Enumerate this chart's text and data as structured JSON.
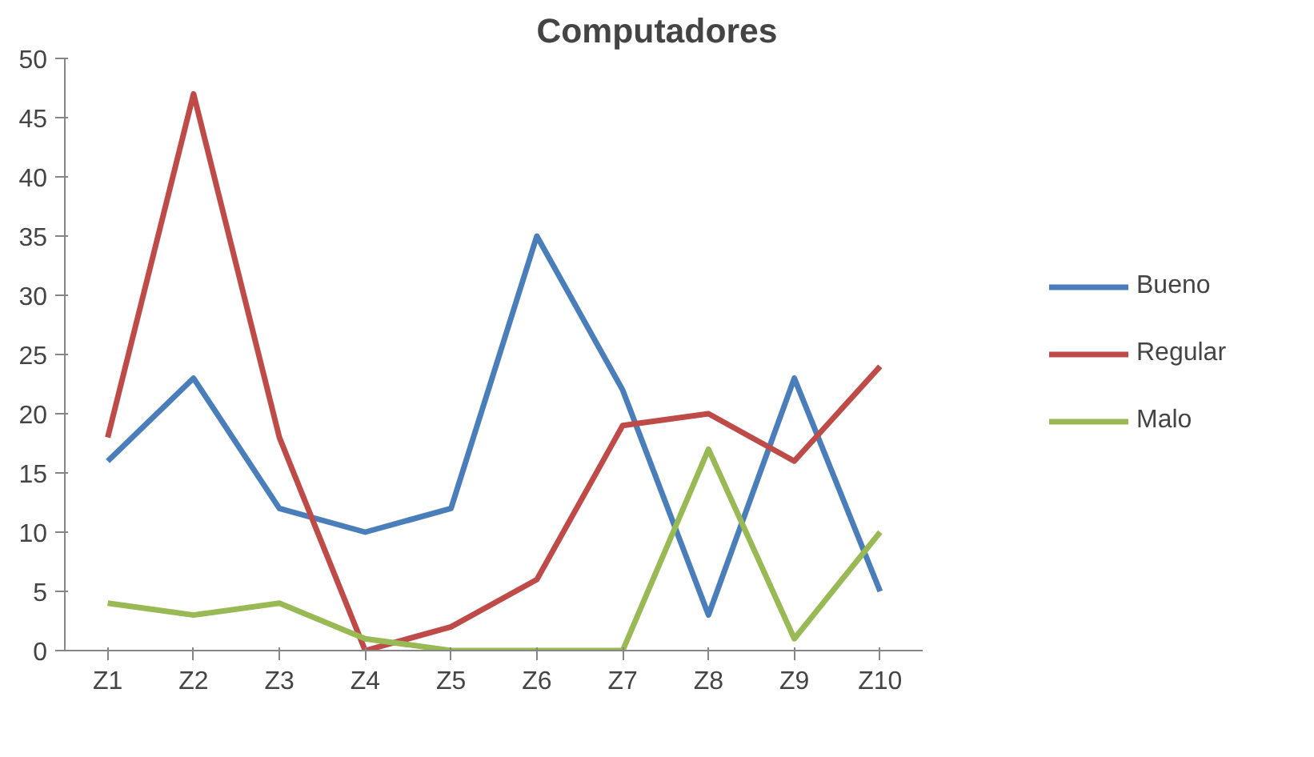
{
  "chart_data": {
    "type": "line",
    "title": "Computadores",
    "categories": [
      "Z1",
      "Z2",
      "Z3",
      "Z4",
      "Z5",
      "Z6",
      "Z7",
      "Z8",
      "Z9",
      "Z10"
    ],
    "series": [
      {
        "name": "Bueno",
        "color": "#4a7ebb",
        "values": [
          16,
          23,
          12,
          10,
          12,
          35,
          22,
          3,
          23,
          5
        ]
      },
      {
        "name": "Regular",
        "color": "#be4b48",
        "values": [
          18,
          47,
          18,
          0,
          2,
          6,
          19,
          20,
          16,
          24
        ]
      },
      {
        "name": "Malo",
        "color": "#98b954",
        "values": [
          4,
          3,
          4,
          1,
          0,
          0,
          0,
          17,
          1,
          10
        ]
      }
    ],
    "ylim": [
      0,
      50
    ],
    "yticks": [
      0,
      5,
      10,
      15,
      20,
      25,
      30,
      35,
      40,
      45,
      50
    ],
    "grid": false,
    "legend": "right",
    "marker": "none",
    "line_style": "solid"
  }
}
